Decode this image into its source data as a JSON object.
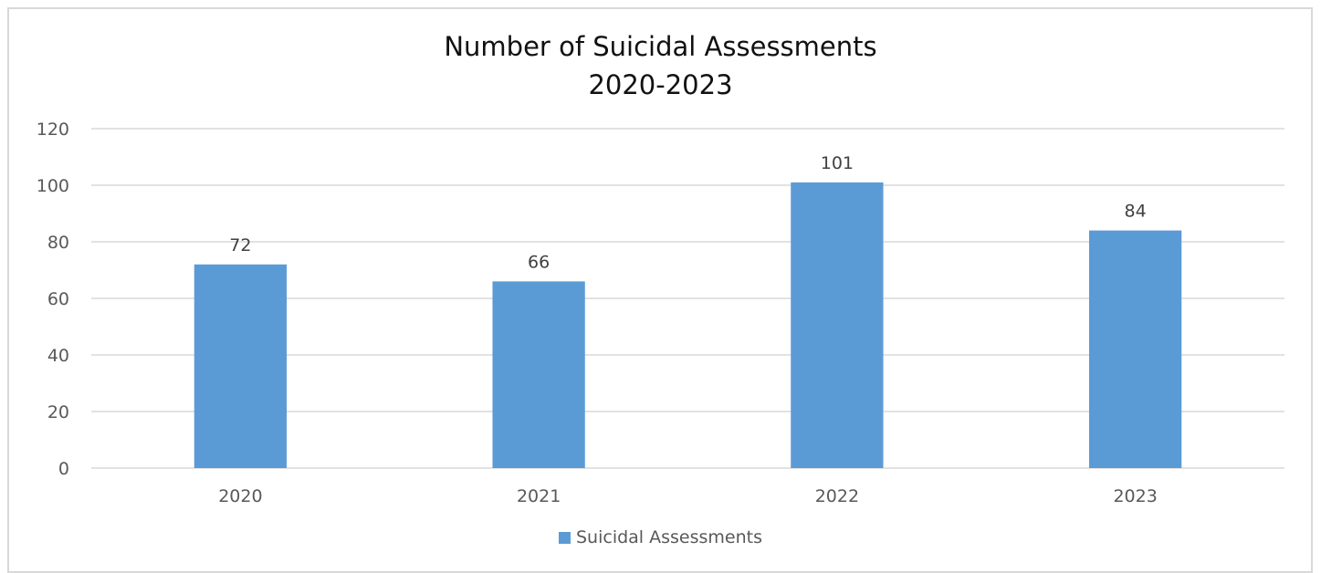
{
  "chart_data": {
    "type": "bar",
    "title_line1": "Number of Suicidal Assessments",
    "title_line2": "2020-2023",
    "categories": [
      "2020",
      "2021",
      "2022",
      "2023"
    ],
    "series": [
      {
        "name": "Suicidal Assessments",
        "values": [
          72,
          66,
          101,
          84
        ],
        "color": "#5b9bd5"
      }
    ],
    "ylim": [
      0,
      120
    ],
    "yticks": [
      0,
      20,
      40,
      60,
      80,
      100,
      120
    ],
    "grid": true,
    "legend_position": "bottom",
    "data_labels": true
  }
}
